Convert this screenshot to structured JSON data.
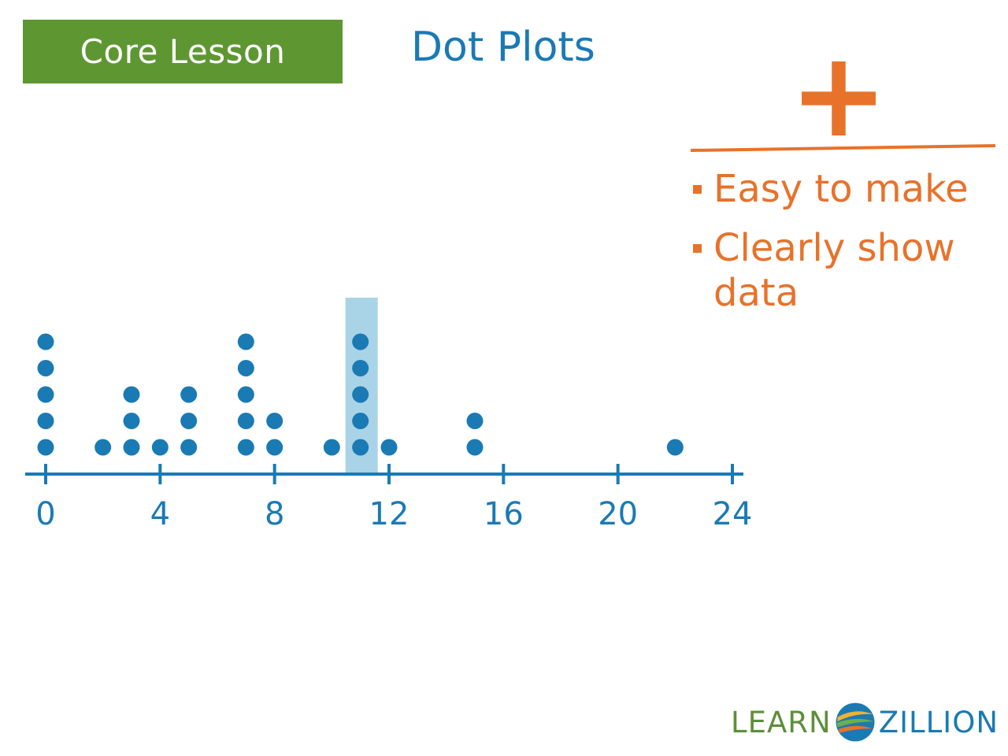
{
  "header": {
    "badge_label": "Core Lesson",
    "title": "Dot Plots"
  },
  "pros": {
    "symbol": "+",
    "items": [
      "Easy to make",
      "Clearly show data"
    ]
  },
  "logo": {
    "part1": "LEARN",
    "part2": "ZILLION"
  },
  "colors": {
    "badge_green": "#5e9732",
    "dot_blue": "#1a7ab4",
    "accent_orange": "#e8722a",
    "highlight_blue": "#a9d3e6"
  },
  "chart_data": {
    "type": "scatter",
    "title": "",
    "xlabel": "",
    "ylabel": "",
    "xlim": [
      0,
      24
    ],
    "xticks": [
      0,
      4,
      8,
      12,
      16,
      20,
      24
    ],
    "points": [
      {
        "x": 0,
        "count": 5
      },
      {
        "x": 2,
        "count": 1
      },
      {
        "x": 3,
        "count": 3
      },
      {
        "x": 4,
        "count": 1
      },
      {
        "x": 5,
        "count": 3
      },
      {
        "x": 7,
        "count": 5
      },
      {
        "x": 8,
        "count": 2
      },
      {
        "x": 10,
        "count": 1
      },
      {
        "x": 11,
        "count": 5
      },
      {
        "x": 12,
        "count": 1
      },
      {
        "x": 15,
        "count": 2
      },
      {
        "x": 22,
        "count": 1
      }
    ],
    "highlight_x": 11,
    "grid": false
  }
}
